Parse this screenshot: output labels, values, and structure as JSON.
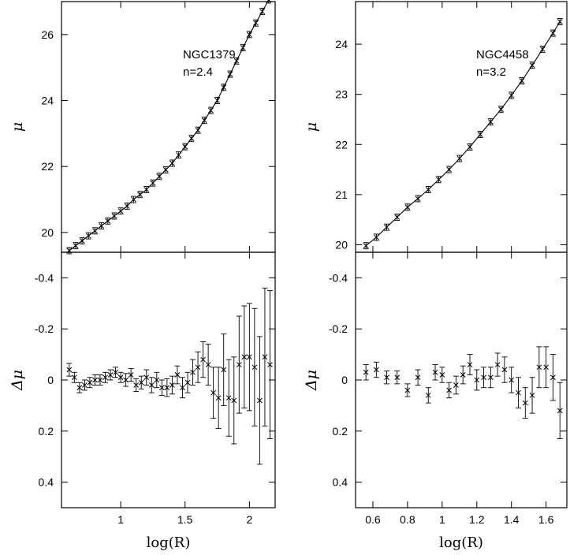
{
  "chart_data": [
    {
      "type": "scatter",
      "panel": "top-left",
      "annotations": [
        "NGC1379",
        "n=2.4"
      ],
      "ylabel": "μ",
      "xlabel": "",
      "xlim": [
        0.54,
        2.2
      ],
      "ylim": [
        27.0,
        19.4
      ],
      "xticks": [
        1,
        1.5,
        2
      ],
      "xticklabels": [],
      "yticks": [
        20,
        22,
        24,
        26
      ],
      "yticklabels": [
        "20",
        "22",
        "24",
        "26"
      ],
      "x": [
        0.6,
        0.65,
        0.7,
        0.75,
        0.8,
        0.85,
        0.9,
        0.95,
        1.0,
        1.05,
        1.1,
        1.15,
        1.2,
        1.25,
        1.3,
        1.35,
        1.4,
        1.45,
        1.5,
        1.55,
        1.6,
        1.65,
        1.7,
        1.75,
        1.8,
        1.85,
        1.9,
        1.95,
        2.0,
        2.05,
        2.1,
        2.15
      ],
      "y": [
        19.45,
        19.6,
        19.75,
        19.9,
        20.05,
        20.2,
        20.35,
        20.5,
        20.65,
        20.8,
        21.0,
        21.15,
        21.3,
        21.5,
        21.7,
        21.9,
        22.1,
        22.35,
        22.6,
        22.85,
        23.1,
        23.4,
        23.7,
        24.0,
        24.4,
        24.8,
        25.2,
        25.6,
        26.0,
        26.35,
        26.7,
        27.05
      ],
      "curve": true
    },
    {
      "type": "scatter",
      "panel": "bottom-left",
      "ylabel": "Δμ",
      "xlabel": "log(R)",
      "xlim": [
        0.54,
        2.2
      ],
      "ylim": [
        -0.5,
        0.5
      ],
      "xticks": [
        1,
        1.5,
        2
      ],
      "xticklabels": [
        "1",
        "1.5",
        "2"
      ],
      "yticks": [
        0.4,
        0.2,
        0,
        -0.2,
        -0.4
      ],
      "yticklabels": [
        "0.4",
        "0.2",
        "0",
        "-0.2",
        "-0.4"
      ],
      "x": [
        0.6,
        0.64,
        0.68,
        0.72,
        0.76,
        0.8,
        0.84,
        0.88,
        0.92,
        0.96,
        1.0,
        1.04,
        1.08,
        1.12,
        1.16,
        1.2,
        1.24,
        1.28,
        1.32,
        1.36,
        1.4,
        1.44,
        1.48,
        1.52,
        1.56,
        1.6,
        1.64,
        1.68,
        1.72,
        1.76,
        1.8,
        1.84,
        1.88,
        1.92,
        1.96,
        2.0,
        2.04,
        2.08,
        2.12,
        2.16
      ],
      "y": [
        -0.04,
        -0.01,
        0.03,
        0.02,
        0.01,
        0.0,
        0.0,
        -0.01,
        -0.02,
        -0.03,
        -0.01,
        0.0,
        -0.02,
        0.02,
        0.01,
        -0.01,
        0.02,
        0.0,
        0.03,
        0.03,
        0.02,
        -0.02,
        0.03,
        0.01,
        -0.03,
        -0.05,
        -0.08,
        -0.06,
        0.05,
        0.07,
        -0.04,
        0.07,
        0.08,
        -0.06,
        -0.09,
        -0.09,
        -0.05,
        0.08,
        -0.09,
        -0.06
      ],
      "err": [
        0.025,
        0.02,
        0.02,
        0.02,
        0.02,
        0.02,
        0.02,
        0.02,
        0.02,
        0.02,
        0.02,
        0.025,
        0.025,
        0.025,
        0.025,
        0.03,
        0.03,
        0.03,
        0.03,
        0.035,
        0.035,
        0.035,
        0.04,
        0.04,
        0.05,
        0.06,
        0.07,
        0.08,
        0.1,
        0.12,
        0.14,
        0.15,
        0.17,
        0.19,
        0.2,
        0.21,
        0.23,
        0.25,
        0.27,
        0.29
      ],
      "curve": false
    },
    {
      "type": "scatter",
      "panel": "top-right",
      "annotations": [
        "NGC4458",
        "n=3.2"
      ],
      "ylabel": "μ",
      "xlabel": "",
      "xlim": [
        0.5,
        1.72
      ],
      "ylim": [
        24.85,
        19.85
      ],
      "xticks": [
        0.6,
        0.8,
        1,
        1.2,
        1.4,
        1.6
      ],
      "xticklabels": [],
      "yticks": [
        20,
        21,
        22,
        23,
        24
      ],
      "yticklabels": [
        "20",
        "21",
        "22",
        "23",
        "24"
      ],
      "x": [
        0.56,
        0.62,
        0.68,
        0.74,
        0.8,
        0.86,
        0.92,
        0.98,
        1.04,
        1.1,
        1.16,
        1.22,
        1.28,
        1.34,
        1.4,
        1.46,
        1.52,
        1.58,
        1.64,
        1.68
      ],
      "y": [
        19.98,
        20.15,
        20.35,
        20.55,
        20.75,
        20.92,
        21.1,
        21.3,
        21.5,
        21.72,
        21.95,
        22.2,
        22.45,
        22.7,
        22.98,
        23.27,
        23.58,
        23.9,
        24.22,
        24.45
      ],
      "curve": true
    },
    {
      "type": "scatter",
      "panel": "bottom-right",
      "ylabel": "Δμ",
      "xlabel": "log(R)",
      "xlim": [
        0.5,
        1.72
      ],
      "ylim": [
        -0.5,
        0.5
      ],
      "xticks": [
        0.6,
        0.8,
        1,
        1.2,
        1.4,
        1.6
      ],
      "xticklabels": [
        "0.6",
        "0.8",
        "1",
        "1.2",
        "1.4",
        "1.6"
      ],
      "yticks": [
        0.4,
        0.2,
        0,
        -0.2,
        -0.4
      ],
      "yticklabels": [
        "0.4",
        "0.2",
        "0",
        "-0.2",
        "-0.4"
      ],
      "x": [
        0.56,
        0.62,
        0.68,
        0.74,
        0.8,
        0.86,
        0.92,
        0.96,
        1.0,
        1.04,
        1.08,
        1.12,
        1.16,
        1.2,
        1.24,
        1.28,
        1.32,
        1.36,
        1.4,
        1.44,
        1.48,
        1.52,
        1.56,
        1.6,
        1.64,
        1.68
      ],
      "y": [
        -0.03,
        -0.04,
        -0.01,
        -0.01,
        0.04,
        -0.01,
        0.06,
        -0.03,
        -0.02,
        0.04,
        0.02,
        -0.02,
        -0.06,
        0.0,
        -0.01,
        -0.01,
        -0.06,
        -0.04,
        0.0,
        0.05,
        0.09,
        0.06,
        -0.05,
        -0.05,
        -0.01,
        0.12
      ],
      "err": [
        0.03,
        0.03,
        0.025,
        0.025,
        0.025,
        0.03,
        0.03,
        0.03,
        0.03,
        0.03,
        0.035,
        0.035,
        0.04,
        0.04,
        0.04,
        0.04,
        0.045,
        0.05,
        0.05,
        0.06,
        0.06,
        0.07,
        0.08,
        0.08,
        0.09,
        0.11
      ],
      "curve": false
    }
  ]
}
